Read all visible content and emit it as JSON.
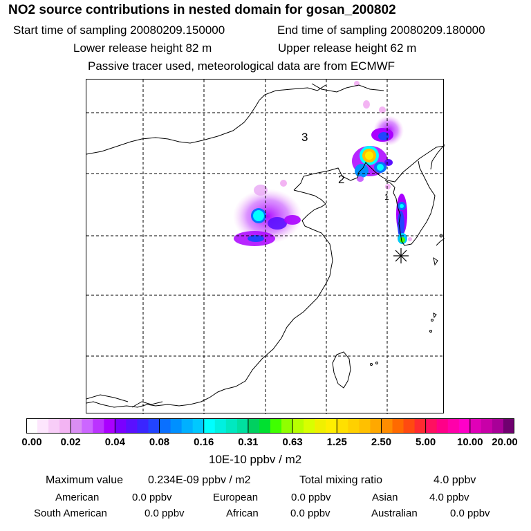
{
  "title": "NO2 source contributions in nested domain for gosan_200802",
  "start_time_label": "Start time of sampling 20080209.150000",
  "end_time_label": "End time of sampling 20080209.180000",
  "lower_release": "Lower release height   82 m",
  "upper_release": "Upper release height   62 m",
  "tracer_note": "Passive tracer used, meteorological data are from ECMWF",
  "map_labels": {
    "region_1": "1",
    "region_2": "2",
    "region_3": "3"
  },
  "colorbar": {
    "ticks": [
      "0.00",
      "0.02",
      "0.04",
      "0.08",
      "0.16",
      "0.31",
      "0.63",
      "1.25",
      "2.50",
      "5.00",
      "10.00",
      "20.00"
    ],
    "unit": "10E-10 ppbv / m2",
    "colors": [
      [
        "#ffffff",
        "#fde6fd",
        "#f8cdf8",
        "#f3b4f3"
      ],
      [
        "#d98ef3",
        "#cc66ff",
        "#bb33ff",
        "#aa00ff"
      ],
      [
        "#7a00ff",
        "#5a10ff",
        "#3a25ff",
        "#2244ff"
      ],
      [
        "#0a70ff",
        "#0090ff",
        "#00b0ff",
        "#00c8ff"
      ],
      [
        "#00ffff",
        "#00f0e0",
        "#00e8c0",
        "#00e0a0"
      ],
      [
        "#00d060",
        "#00e030",
        "#40ff00",
        "#90ff00"
      ],
      [
        "#b8ff00",
        "#d8ff00",
        "#f0f000",
        "#ffee00"
      ],
      [
        "#ffe000",
        "#ffd000",
        "#ffc000",
        "#ffa800"
      ],
      [
        "#ff8c00",
        "#ff6a00",
        "#ff4a10",
        "#ff2a30"
      ],
      [
        "#ff1060",
        "#ff0088",
        "#ff00aa",
        "#ff00c8"
      ],
      [
        "#e000b8",
        "#c800a8",
        "#a80098",
        "#700070"
      ]
    ]
  },
  "summary": {
    "max_label": "Maximum value",
    "max_value": "0.234E-09 ppbv / m2",
    "total_label": "Total mixing ratio",
    "total_value": "4.0 ppbv"
  },
  "sources": [
    {
      "name": "American",
      "value": "0.0 ppbv"
    },
    {
      "name": "European",
      "value": "0.0 ppbv"
    },
    {
      "name": "Asian",
      "value": "4.0 ppbv"
    },
    {
      "name": "South American",
      "value": "0.0 ppbv"
    },
    {
      "name": "African",
      "value": "0.0 ppbv"
    },
    {
      "name": "Australian",
      "value": "0.0 ppbv"
    }
  ]
}
